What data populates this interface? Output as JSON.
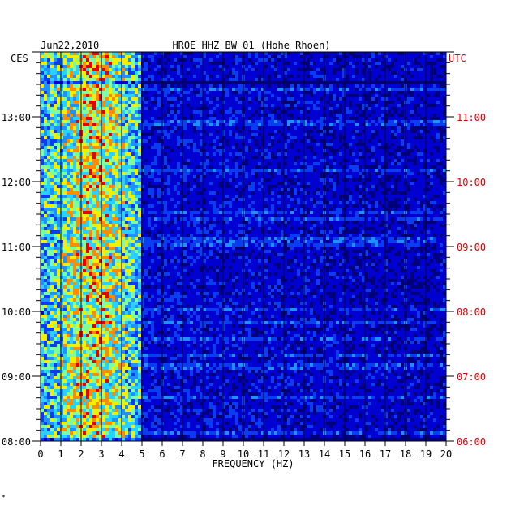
{
  "chart_data": {
    "type": "heatmap",
    "date": "Jun22,2010",
    "title": "HROE HHZ BW 01 (Hohe Rhoen)",
    "xlabel": "FREQUENCY (HZ)",
    "left_axis_label": "CES",
    "right_axis_label": "UTC",
    "xlim": [
      0,
      20
    ],
    "x_ticks": [
      "0",
      "1",
      "2",
      "3",
      "4",
      "5",
      "6",
      "7",
      "8",
      "9",
      "10",
      "11",
      "12",
      "13",
      "14",
      "15",
      "16",
      "17",
      "18",
      "19",
      "20"
    ],
    "time_range_ces_hours": [
      8,
      14
    ],
    "left_ticks": [
      "08:00",
      "09:00",
      "10:00",
      "11:00",
      "12:00",
      "13:00"
    ],
    "right_ticks": [
      "06:00",
      "07:00",
      "08:00",
      "09:00",
      "10:00",
      "11:00"
    ],
    "colormap": [
      "#00007a",
      "#0000d0",
      "#0a3cf0",
      "#1e90ff",
      "#28d2ff",
      "#7dffa0",
      "#f0f000",
      "#ff8c00",
      "#e60000"
    ],
    "energy_bands_hz": [
      [
        0,
        5
      ]
    ],
    "vertical_line_hz": [
      5
    ],
    "footnote": "*"
  }
}
